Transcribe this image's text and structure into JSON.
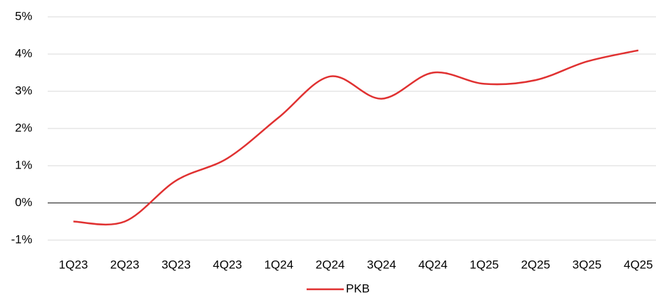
{
  "chart_data": {
    "type": "line",
    "categories": [
      "1Q23",
      "2Q23",
      "3Q23",
      "4Q23",
      "1Q24",
      "2Q24",
      "3Q24",
      "4Q24",
      "1Q25",
      "2Q25",
      "3Q25",
      "4Q25"
    ],
    "series": [
      {
        "name": "PKB",
        "color": "#e03131",
        "values": [
          -0.5,
          -0.5,
          0.6,
          1.2,
          2.3,
          3.4,
          2.8,
          3.5,
          3.2,
          3.3,
          3.8,
          4.1
        ]
      }
    ],
    "ylim": [
      -1,
      5
    ],
    "yticks": [
      {
        "value": -1,
        "label": "-1%"
      },
      {
        "value": 0,
        "label": "0%"
      },
      {
        "value": 1,
        "label": "1%"
      },
      {
        "value": 2,
        "label": "2%"
      },
      {
        "value": 3,
        "label": "3%"
      },
      {
        "value": 4,
        "label": "4%"
      },
      {
        "value": 5,
        "label": "5%"
      }
    ],
    "grid": true,
    "smooth": true,
    "legend": "bottom"
  }
}
